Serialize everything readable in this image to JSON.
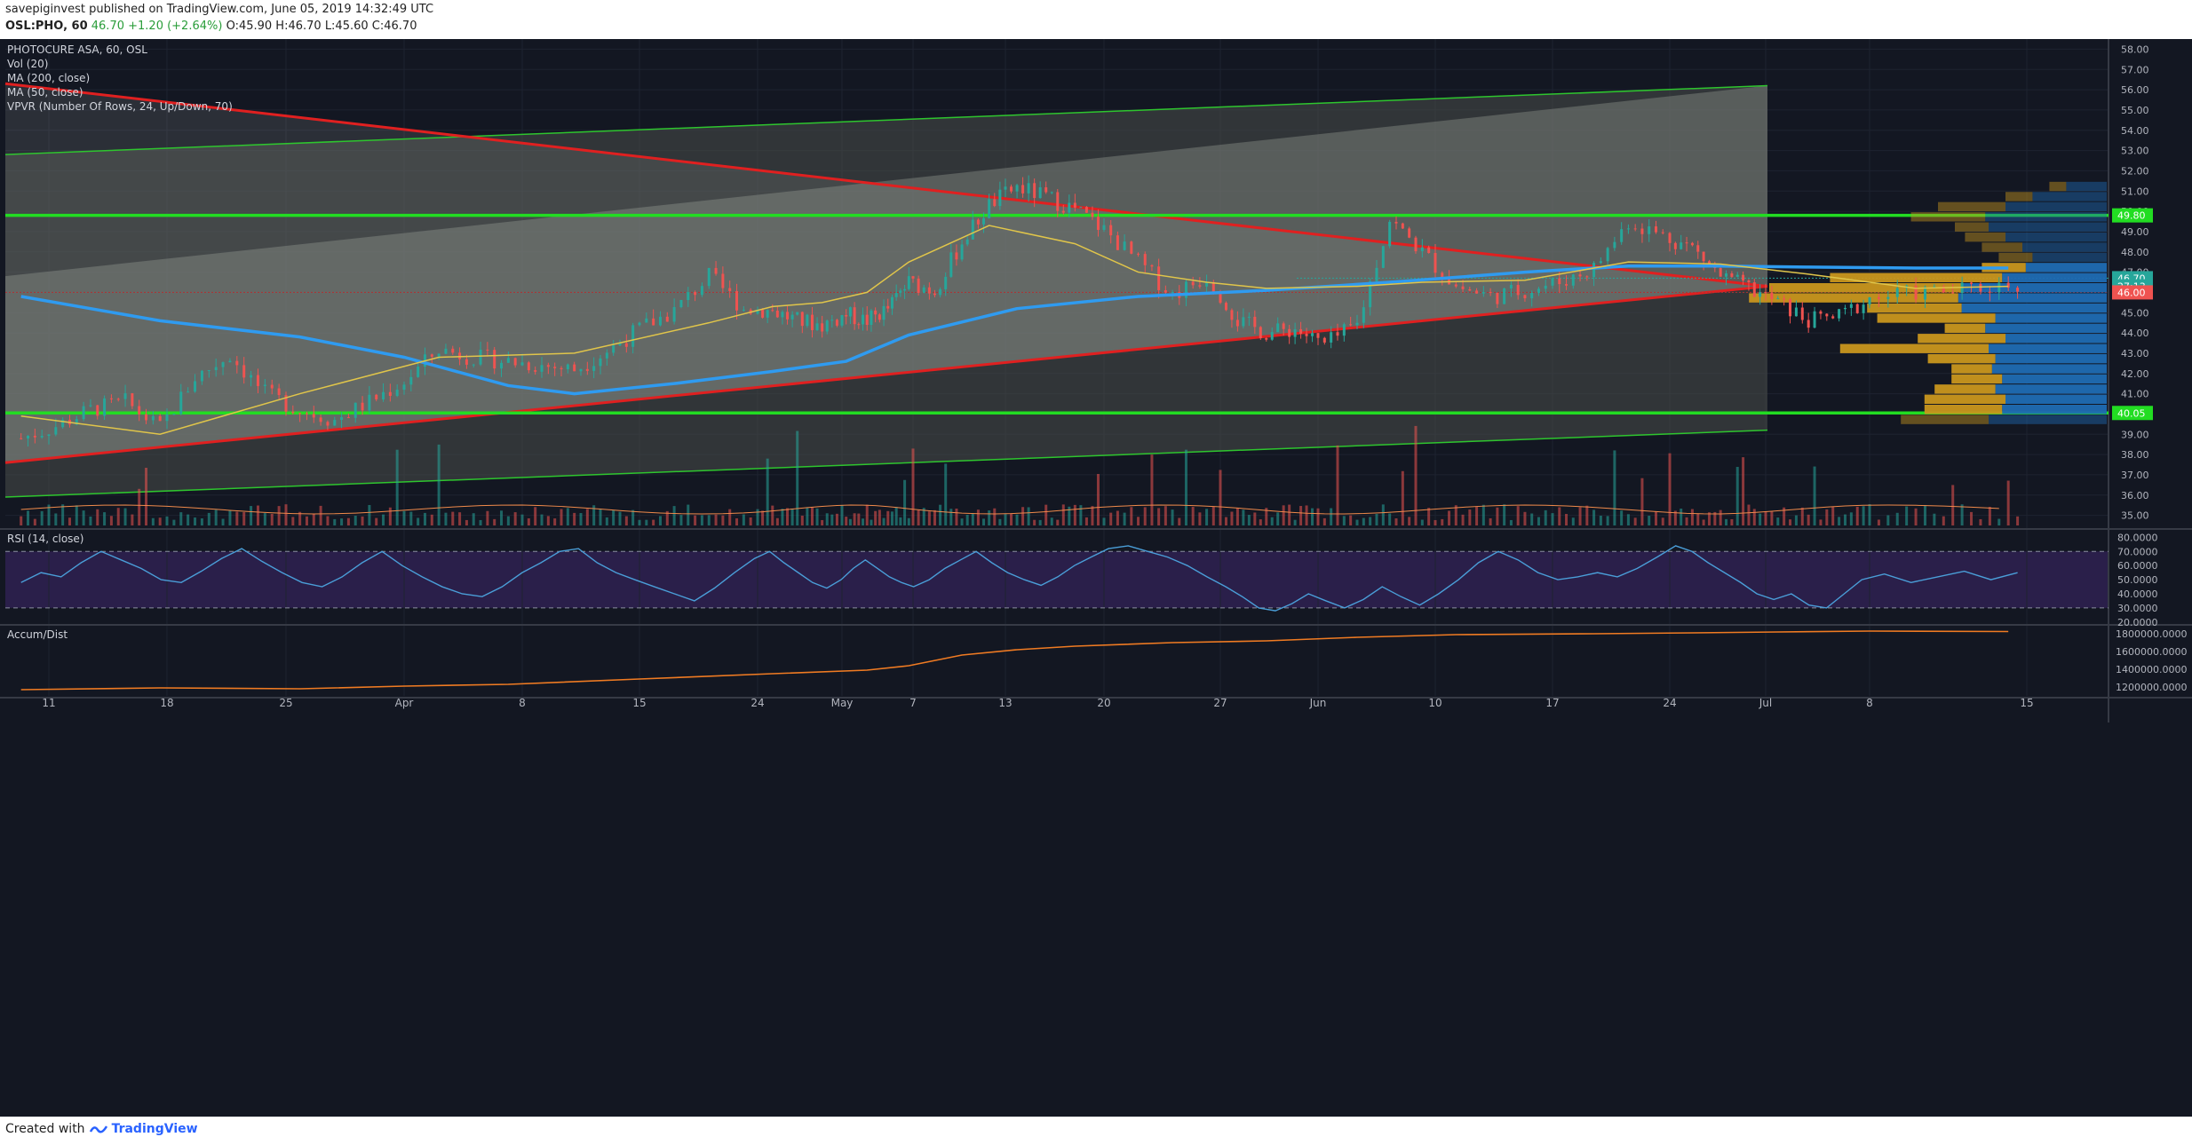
{
  "header": {
    "publisher": "savepiginvest",
    "published_text": "published on TradingView.com, June 05, 2019 14:32:49 UTC",
    "symbol": "OSL:PHO, 60",
    "last": "46.70",
    "change": "+1.20 (+2.64%)",
    "ohlc": "O:45.90 H:46.70 L:45.60 C:46.70"
  },
  "legend": [
    "PHOTOCURE ASA, 60, OSL",
    "Vol (20)",
    "MA (200, close)",
    "MA (50, close)",
    "VPVR (Number Of Rows, 24, Up/Down, 70)"
  ],
  "rsi_label": "RSI (14, close)",
  "ad_label": "Accum/Dist",
  "footer": {
    "created_with": "Created with",
    "brand": "TradingView"
  },
  "colors": {
    "background": "#131722",
    "up": "#26a69a",
    "down": "#ef5350",
    "ma200": "#2f9bf0",
    "ma50": "#e0c54a",
    "support_resistance": "#22dd22",
    "trendline": "#e02020",
    "channel": "#2ec52e",
    "rsi_line": "#4a9ed8",
    "rsi_band": "#2a1f4a",
    "accum_dist": "#f07b22",
    "vpvr_up": "#1f6bb3",
    "vpvr_down": "#c8961e"
  },
  "chart_data": [
    {
      "type": "candlestick",
      "title": "PHOTOCURE ASA, 60, OSL",
      "x_ticks": [
        "11",
        "18",
        "25",
        "Apr",
        "8",
        "15",
        "24",
        "May",
        "7",
        "13",
        "20",
        "27",
        "Jun",
        "10",
        "17",
        "24",
        "Jul",
        "8",
        "15"
      ],
      "y_ticks": [
        "58.00",
        "57.00",
        "56.00",
        "55.00",
        "54.00",
        "53.00",
        "52.00",
        "51.00",
        "50.00",
        "49.00",
        "48.00",
        "47.00",
        "46.00",
        "45.00",
        "44.00",
        "43.00",
        "42.00",
        "41.00",
        "40.00",
        "39.00",
        "38.00",
        "37.00",
        "36.00",
        "35.00"
      ],
      "ylim": [
        34.5,
        58.5
      ],
      "price_labels": [
        {
          "text": "49.80",
          "value": 49.8,
          "color": "#22dd22"
        },
        {
          "text": "46.70",
          "value": 46.7,
          "color": "#26a69a"
        },
        {
          "text": "27:13",
          "value": 46.3,
          "color": "#26a69a"
        },
        {
          "text": "46.00",
          "value": 46.0,
          "color": "#ef5350"
        },
        {
          "text": "40.05",
          "value": 40.05,
          "color": "#22dd22"
        }
      ],
      "horizontal_levels": [
        49.8,
        40.05
      ],
      "close_path": [
        [
          0,
          38.8
        ],
        [
          5,
          39.4
        ],
        [
          10,
          40.2
        ],
        [
          15,
          40.6
        ],
        [
          20,
          39.3
        ],
        [
          25,
          41.8
        ],
        [
          30,
          42.9
        ],
        [
          35,
          41.0
        ],
        [
          40,
          40.2
        ],
        [
          45,
          39.7
        ],
        [
          50,
          40.6
        ],
        [
          55,
          41.6
        ],
        [
          60,
          43.2
        ],
        [
          65,
          42.8
        ],
        [
          70,
          42.6
        ],
        [
          75,
          42.4
        ],
        [
          80,
          42.2
        ],
        [
          85,
          43.1
        ],
        [
          90,
          44.2
        ],
        [
          95,
          45.1
        ],
        [
          100,
          46.8
        ],
        [
          105,
          45.2
        ],
        [
          110,
          45.1
        ],
        [
          115,
          44.6
        ],
        [
          120,
          44.4
        ],
        [
          125,
          44.9
        ],
        [
          130,
          44.6
        ],
        [
          135,
          45.2
        ],
        [
          140,
          46.5
        ],
        [
          145,
          46.1
        ],
        [
          150,
          48.5
        ],
        [
          155,
          50.3
        ],
        [
          160,
          51.2
        ],
        [
          165,
          50.7
        ],
        [
          170,
          50.1
        ],
        [
          175,
          49.1
        ],
        [
          180,
          47.5
        ],
        [
          185,
          45.9
        ],
        [
          190,
          46.8
        ],
        [
          195,
          44.6
        ],
        [
          200,
          44.0
        ],
        [
          205,
          44.2
        ],
        [
          210,
          43.4
        ],
        [
          215,
          44.4
        ],
        [
          220,
          49.6
        ],
        [
          225,
          48.0
        ],
        [
          230,
          46.3
        ],
        [
          235,
          45.8
        ],
        [
          240,
          46.1
        ],
        [
          245,
          46.5
        ],
        [
          250,
          47.2
        ],
        [
          255,
          49.5
        ],
        [
          260,
          48.8
        ],
        [
          265,
          48.2
        ],
        [
          270,
          46.8
        ],
        [
          275,
          46.2
        ],
        [
          280,
          45.5
        ],
        [
          285,
          44.6
        ],
        [
          290,
          44.8
        ],
        [
          295,
          45.7
        ],
        [
          300,
          46.0
        ],
        [
          305,
          46.1
        ],
        [
          310,
          46.4
        ]
      ],
      "x_tick_index": [
        4,
        21,
        38,
        55,
        72,
        90,
        107,
        124,
        141,
        158,
        175,
        192,
        209,
        227,
        244,
        261,
        278,
        295,
        312
      ],
      "ma50": [
        [
          0,
          39.9
        ],
        [
          20,
          39.0
        ],
        [
          40,
          41.0
        ],
        [
          60,
          42.8
        ],
        [
          80,
          43.0
        ],
        [
          100,
          44.5
        ],
        [
          110,
          45.3
        ],
        [
          120,
          45.5
        ],
        [
          130,
          46.0
        ],
        [
          140,
          47.5
        ],
        [
          155,
          49.3
        ],
        [
          170,
          48.4
        ],
        [
          180,
          47.0
        ],
        [
          190,
          46.5
        ],
        [
          200,
          46.2
        ],
        [
          215,
          46.3
        ],
        [
          225,
          46.5
        ],
        [
          240,
          46.6
        ],
        [
          255,
          47.5
        ],
        [
          270,
          47.4
        ],
        [
          285,
          46.9
        ],
        [
          300,
          46.2
        ],
        [
          310,
          46.3
        ]
      ],
      "ma200": [
        [
          0,
          45.8
        ],
        [
          20,
          44.6
        ],
        [
          40,
          43.8
        ],
        [
          55,
          42.8
        ],
        [
          70,
          41.4
        ],
        [
          80,
          41.0
        ],
        [
          95,
          41.5
        ],
        [
          110,
          42.1
        ],
        [
          125,
          42.6
        ],
        [
          140,
          43.9
        ],
        [
          160,
          45.2
        ],
        [
          180,
          45.8
        ],
        [
          200,
          46.1
        ],
        [
          220,
          46.5
        ],
        [
          240,
          47.0
        ],
        [
          255,
          47.3
        ],
        [
          270,
          47.3
        ],
        [
          285,
          47.25
        ],
        [
          300,
          47.2
        ],
        [
          310,
          47.2
        ]
      ],
      "vpvr": [
        {
          "price": 51.25,
          "up": 0.12,
          "down": 0.05
        },
        {
          "price": 50.75,
          "up": 0.22,
          "down": 0.08
        },
        {
          "price": 50.25,
          "up": 0.3,
          "down": 0.2
        },
        {
          "price": 49.75,
          "up": 0.36,
          "down": 0.22
        },
        {
          "price": 49.25,
          "up": 0.35,
          "down": 0.1
        },
        {
          "price": 48.75,
          "up": 0.3,
          "down": 0.12
        },
        {
          "price": 48.25,
          "up": 0.25,
          "down": 0.12
        },
        {
          "price": 47.75,
          "up": 0.22,
          "down": 0.1
        },
        {
          "price": 47.25,
          "up": 0.24,
          "down": 0.13
        },
        {
          "price": 46.75,
          "up": 0.31,
          "down": 0.51
        },
        {
          "price": 46.25,
          "up": 0.43,
          "down": 0.57
        },
        {
          "price": 45.75,
          "up": 0.44,
          "down": 0.62
        },
        {
          "price": 45.25,
          "up": 0.43,
          "down": 0.28
        },
        {
          "price": 44.75,
          "up": 0.33,
          "down": 0.35
        },
        {
          "price": 44.25,
          "up": 0.36,
          "down": 0.12
        },
        {
          "price": 43.75,
          "up": 0.3,
          "down": 0.26
        },
        {
          "price": 43.25,
          "up": 0.35,
          "down": 0.44
        },
        {
          "price": 42.75,
          "up": 0.33,
          "down": 0.2
        },
        {
          "price": 42.25,
          "up": 0.34,
          "down": 0.12
        },
        {
          "price": 41.75,
          "up": 0.31,
          "down": 0.15
        },
        {
          "price": 41.25,
          "up": 0.33,
          "down": 0.18
        },
        {
          "price": 40.75,
          "up": 0.3,
          "down": 0.24
        },
        {
          "price": 40.25,
          "up": 0.31,
          "down": 0.23
        },
        {
          "price": 39.75,
          "up": 0.35,
          "down": 0.26
        }
      ],
      "channel_upper": [
        [
          0,
          52.8
        ],
        [
          1990,
          56.2
        ]
      ],
      "channel_lower": [
        [
          0,
          35.9
        ],
        [
          1990,
          39.2
        ]
      ],
      "trend_down": [
        [
          0,
          56.3
        ],
        [
          1990,
          46.3
        ]
      ],
      "trend_up": [
        [
          0,
          37.6
        ],
        [
          1990,
          46.3
        ]
      ]
    },
    {
      "type": "volume",
      "title": "Vol (20)"
    },
    {
      "type": "line",
      "title": "RSI (14, close)",
      "y_ticks": [
        "80.0000",
        "70.0000",
        "60.0000",
        "50.0000",
        "40.0000",
        "30.0000",
        "20.0000"
      ],
      "ylim": [
        18,
        84
      ],
      "band": [
        30,
        70
      ],
      "values": [
        48,
        55,
        52,
        62,
        70,
        64,
        58,
        50,
        48,
        56,
        65,
        72,
        63,
        55,
        48,
        45,
        52,
        62,
        70,
        60,
        52,
        45,
        40,
        38,
        45,
        55,
        62,
        70,
        72,
        62,
        55,
        50,
        45,
        40,
        35,
        44,
        55,
        65,
        70,
        62,
        55,
        48,
        44,
        50,
        58,
        64,
        58,
        52,
        48,
        45,
        50,
        58,
        64,
        70,
        62,
        55,
        50,
        46,
        52,
        60,
        66,
        72,
        74,
        70,
        66,
        60,
        52,
        45,
        38,
        30,
        28,
        33,
        40,
        35,
        30,
        36,
        45,
        38,
        32,
        40,
        50,
        62,
        70,
        64,
        55,
        50,
        52,
        55,
        52,
        58,
        66,
        74,
        70,
        62,
        55,
        48,
        40,
        36,
        40,
        32,
        30,
        40,
        50,
        54,
        48,
        52,
        56,
        50,
        55
      ]
    },
    {
      "type": "line",
      "title": "Accum/Dist",
      "y_ticks": [
        "1800000.0000",
        "1600000.0000",
        "1400000.0000",
        "1200000.0000"
      ],
      "ylim": [
        1100000,
        1880000
      ],
      "values": [
        [
          0,
          1170000
        ],
        [
          20,
          1190000
        ],
        [
          40,
          1180000
        ],
        [
          55,
          1210000
        ],
        [
          70,
          1230000
        ],
        [
          90,
          1290000
        ],
        [
          110,
          1350000
        ],
        [
          130,
          1390000
        ],
        [
          140,
          1440000
        ],
        [
          150,
          1560000
        ],
        [
          160,
          1620000
        ],
        [
          170,
          1660000
        ],
        [
          185,
          1700000
        ],
        [
          200,
          1720000
        ],
        [
          215,
          1760000
        ],
        [
          230,
          1790000
        ],
        [
          250,
          1800000
        ],
        [
          265,
          1810000
        ],
        [
          280,
          1820000
        ],
        [
          295,
          1830000
        ],
        [
          310,
          1825000
        ]
      ]
    }
  ]
}
